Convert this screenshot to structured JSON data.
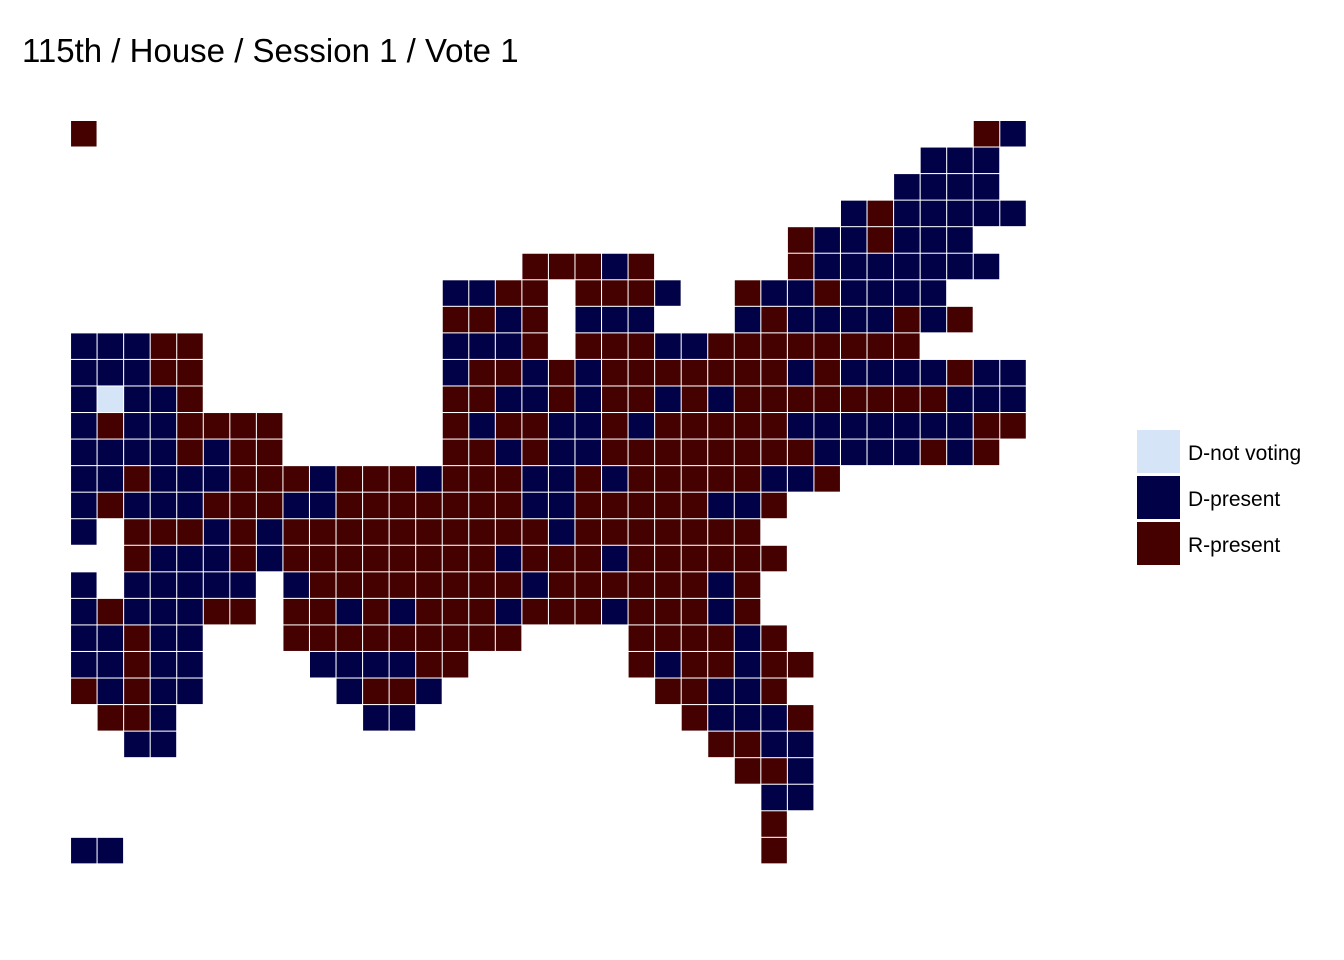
{
  "title": "115th / House / Session 1 / Vote 1",
  "chart_data": {
    "type": "heatmap",
    "title": "115th / House / Session 1 / Vote 1",
    "grid": false,
    "legend_position": "right",
    "legend": [
      {
        "key": "N",
        "label": "D-not voting",
        "color": "#d6e4f7"
      },
      {
        "key": "D",
        "label": "D-present",
        "color": "#010147"
      },
      {
        "key": "R",
        "label": "R-present",
        "color": "#450000"
      }
    ],
    "cells": [
      ". R . . . . . . . . . . . . . . . . . . . . . . . . . . . . . . . . . R D . .",
      ". . . . . . . . . . . . . . . . . . . . . . . . . . . . . . . . . D D D . . .",
      ". . . . . . . . . . . . . . . . . . . . . . . . . . . . . . . . D D D D . . .",
      ". . . . . . . . . . . . . . . . . . . . . . . . . . . . . . D R D D D D D . .",
      ". . . . . . . . . . . . . . . . . . . . . . . . . . . . R D D R D D D . . . .",
      ". . . . . . . . . . . . . . . . . . R R R D R . . . . . R D D D D D D D . . .",
      ". . . . . . . . . . . . . . . D D R R . R R R D . . R D D R D D D D . . . . .",
      ". . . . . . . . . . . . . . . R R D R . D D D . . . D R D D D D R D R . . . .",
      ". D D D R R . . . . . . . . . D D D R . R R R D D R R R R R R R R . . . . . .",
      ". D D D R R . . . . . . . . . D R R D R D R R R R R R R D R D D D D R D D . .",
      ". D N D D R . . . . . . . . . R R D D R D R R D R D R R R R R R R R D D D . .",
      ". D R D D R R R R . . . . . . R D R R D D R D R R R R R D D D D D D D R R . .",
      ". D D D D R D R R . . . . . . R R D R D D R R R R R R R R D D D D R D R . . .",
      ". D D R D D D R R R D R R R D R R R D D R D R R R R R D D R . . . . . . . . .",
      ". D R D D D R R R D D R R R R R R R D D R R R R R D D R . . . . . . . . . . .",
      ". D . R R R D R D R R R R R R R R R R D R R R R R R R . . . . . . . . . . . .",
      ". . . R D D D R D R R R R R R R R D R R R D R R R R R R . . . . . . . . . . .",
      ". D . D D D D D . D R R R R R R R R D R R R R R R D R . . . . . . . . . . . .",
      ". D R D D D R R . R R D R D R R R D R R R D R R R D R . . . . . . . . . . . .",
      ". D D R D D . . . R R R R R R R R R . . . . R R R R D R . . . . . . . . . . .",
      ". D D R D D . . . . D D D D R R . . . . . . R D R R D R R . . . . . . . . . .",
      ". R D R D D . . . . . D R R D . . . . . . . . R R D D R . . . . . . . . . . .",
      ". . R R D . . . . . . . D D . . . . . . . . . . R D D D R . . . . . . . . . .",
      ". . . D D . . . . . . . . . . . . . . . . . . . . R R D D . . . . . . . . . .",
      ". . . . . . . . . . . . . . . . . . . . . . . . . . R R D . . . . . . . . . .",
      ". . . . . . . . . . . . . . . . . . . . . . . . . . . D D . . . . . . . . . .",
      ". . . . . . . . . . . . . . . . . . . . . . . . . . . R . . . . . . . . . . .",
      ". D D . . . . . . . . . . . . . . . . . . . . . . . . R . . . . . . . . . . ."
    ]
  }
}
